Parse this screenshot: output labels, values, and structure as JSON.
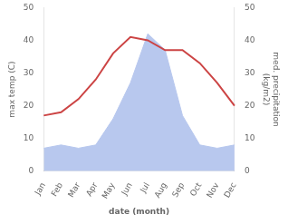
{
  "chart_data": {
    "type": "line",
    "categories": [
      "Jan",
      "Feb",
      "Mar",
      "Apr",
      "May",
      "Jun",
      "Jul",
      "Aug",
      "Sep",
      "Oct",
      "Nov",
      "Dec"
    ],
    "series": [
      {
        "type": "line",
        "color": "#cc4444",
        "values": [
          17,
          18,
          22,
          28,
          36,
          41,
          40,
          37,
          37,
          33,
          27,
          20
        ]
      },
      {
        "type": "area",
        "color": "#b8c8ee",
        "axis": "y2",
        "values": [
          7,
          8,
          7,
          8,
          16,
          27,
          42,
          37,
          17,
          8,
          7,
          8
        ]
      }
    ],
    "xlabel": "date (month)",
    "ylabel": "max temp (C)",
    "y2label": "med. precipitation\n(kg/m2)",
    "ylim": [
      0,
      50
    ],
    "yticks": [
      0,
      10,
      20,
      30,
      40,
      50
    ],
    "y2lim": [
      0,
      50
    ],
    "y2ticks": [
      0,
      10,
      20,
      30,
      40,
      50
    ],
    "grid": false
  }
}
